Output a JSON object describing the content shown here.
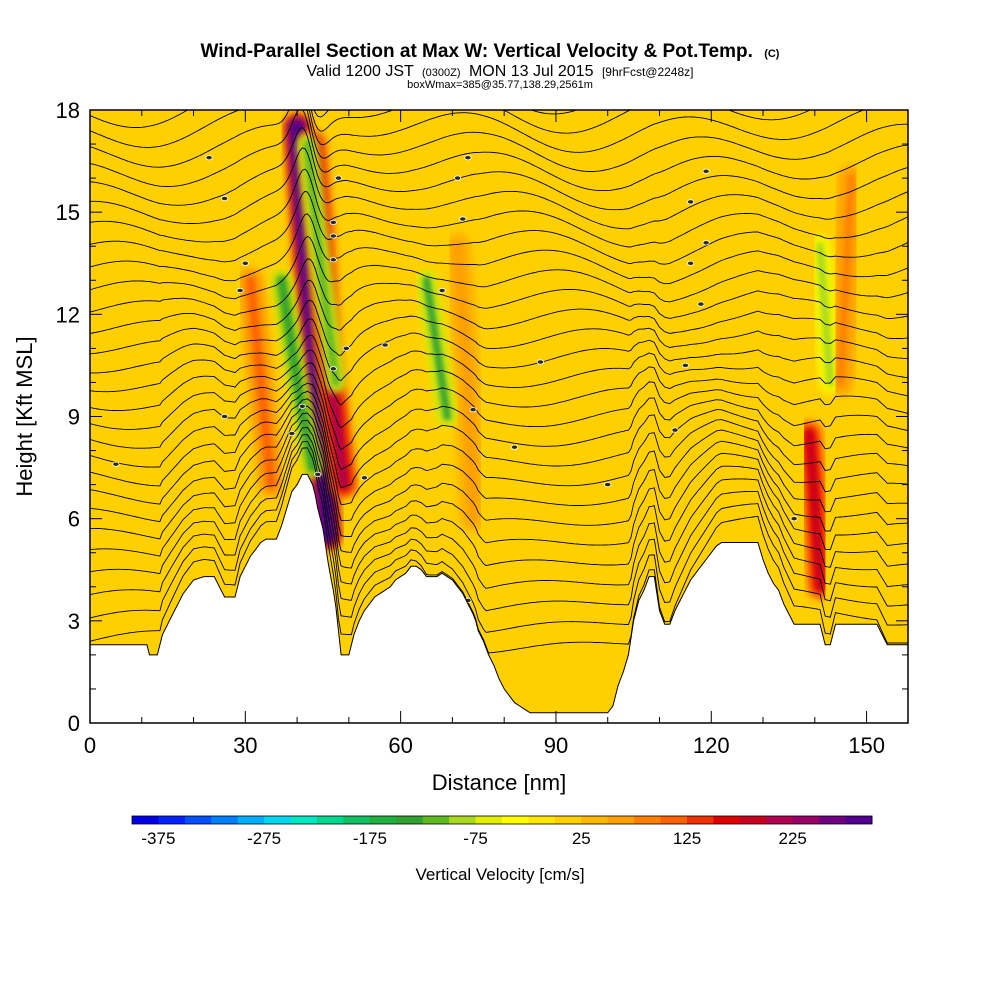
{
  "chart_data": {
    "type": "heatmap",
    "title": "Wind-Parallel Section at Max W: Vertical Velocity & Pot.Temp.",
    "copyright": "(C)",
    "subtitle": {
      "valid": "Valid 1200 JST",
      "utc": "(0300Z)",
      "date": "MON 13 Jul 2015",
      "fcst": "[9hrFcst@2248z]"
    },
    "box_info": "boxWmax=385@35.77,138.29,2561m",
    "xlabel": "Distance [nm]",
    "ylabel": "Height [Kft MSL]",
    "xlim": [
      0,
      158
    ],
    "ylim": [
      0,
      18
    ],
    "x_ticks": [
      0,
      30,
      60,
      90,
      120,
      150
    ],
    "x_tick_labels": [
      "0",
      "30",
      "60",
      "90",
      "120",
      "150"
    ],
    "y_ticks": [
      0,
      3,
      6,
      9,
      12,
      15,
      18
    ],
    "y_tick_labels": [
      "0",
      "3",
      "6",
      "9",
      "12",
      "15",
      "18"
    ],
    "terrain": [
      [
        0,
        2.3
      ],
      [
        5,
        2.3
      ],
      [
        11,
        2.3
      ],
      [
        11.5,
        2.0
      ],
      [
        13,
        2.0
      ],
      [
        13.5,
        2.3
      ],
      [
        14,
        2.6
      ],
      [
        15,
        2.9
      ],
      [
        16,
        3.2
      ],
      [
        17,
        3.5
      ],
      [
        18,
        3.8
      ],
      [
        19,
        4.0
      ],
      [
        20,
        4.2
      ],
      [
        22,
        4.3
      ],
      [
        24,
        4.3
      ],
      [
        25,
        4.0
      ],
      [
        26,
        3.7
      ],
      [
        28,
        3.7
      ],
      [
        28.5,
        4.0
      ],
      [
        29,
        4.3
      ],
      [
        30,
        4.6
      ],
      [
        31,
        4.9
      ],
      [
        32,
        5.1
      ],
      [
        33,
        5.3
      ],
      [
        34,
        5.4
      ],
      [
        36,
        5.4
      ],
      [
        37,
        5.8
      ],
      [
        38,
        6.3
      ],
      [
        39,
        6.8
      ],
      [
        40,
        7.0
      ],
      [
        41,
        7.3
      ],
      [
        42,
        7.3
      ],
      [
        43,
        7.0
      ],
      [
        43.5,
        6.7
      ],
      [
        44,
        6.3
      ],
      [
        44.5,
        6.0
      ],
      [
        45,
        5.7
      ],
      [
        45.5,
        5.2
      ],
      [
        46,
        4.7
      ],
      [
        46.5,
        4.3
      ],
      [
        47,
        3.9
      ],
      [
        47.5,
        3.4
      ],
      [
        48,
        2.7
      ],
      [
        48.5,
        2.0
      ],
      [
        50,
        2.0
      ],
      [
        50.5,
        2.3
      ],
      [
        51,
        2.6
      ],
      [
        52,
        3.0
      ],
      [
        53,
        3.3
      ],
      [
        54,
        3.5
      ],
      [
        55,
        3.7
      ],
      [
        56,
        3.8
      ],
      [
        57,
        3.9
      ],
      [
        58,
        4.0
      ],
      [
        59,
        4.2
      ],
      [
        60,
        4.3
      ],
      [
        61,
        4.4
      ],
      [
        62,
        4.6
      ],
      [
        63,
        4.6
      ],
      [
        64,
        4.5
      ],
      [
        65,
        4.3
      ],
      [
        67,
        4.3
      ],
      [
        68,
        4.4
      ],
      [
        69,
        4.3
      ],
      [
        70,
        4.2
      ],
      [
        71,
        4.0
      ],
      [
        72,
        3.8
      ],
      [
        73,
        3.5
      ],
      [
        74,
        3.2
      ],
      [
        74.5,
        3.0
      ],
      [
        75,
        2.7
      ],
      [
        76,
        2.4
      ],
      [
        77,
        2.0
      ],
      [
        78,
        1.7
      ],
      [
        79,
        1.3
      ],
      [
        80,
        1.0
      ],
      [
        81,
        0.8
      ],
      [
        82,
        0.6
      ],
      [
        83,
        0.5
      ],
      [
        84,
        0.4
      ],
      [
        85,
        0.3
      ],
      [
        100,
        0.3
      ],
      [
        101,
        0.5
      ],
      [
        101.5,
        0.8
      ],
      [
        102,
        1.1
      ],
      [
        103,
        1.5
      ],
      [
        104,
        2.0
      ],
      [
        104.5,
        2.5
      ],
      [
        105,
        3.0
      ],
      [
        106,
        3.6
      ],
      [
        107,
        3.9
      ],
      [
        108,
        4.3
      ],
      [
        109,
        4.3
      ],
      [
        109.5,
        3.8
      ],
      [
        110,
        3.3
      ],
      [
        111,
        2.9
      ],
      [
        112,
        2.9
      ],
      [
        113,
        3.3
      ],
      [
        114,
        3.6
      ],
      [
        115,
        3.9
      ],
      [
        116,
        4.2
      ],
      [
        117,
        4.4
      ],
      [
        118,
        4.6
      ],
      [
        119,
        4.8
      ],
      [
        120,
        5.0
      ],
      [
        121,
        5.2
      ],
      [
        122,
        5.3
      ],
      [
        129,
        5.3
      ],
      [
        130,
        4.8
      ],
      [
        131,
        4.4
      ],
      [
        132,
        4.1
      ],
      [
        133,
        3.9
      ],
      [
        134,
        3.5
      ],
      [
        135,
        3.2
      ],
      [
        136,
        2.9
      ],
      [
        141,
        2.9
      ],
      [
        141.5,
        2.6
      ],
      [
        142,
        2.3
      ],
      [
        143,
        2.3
      ],
      [
        143.5,
        2.6
      ],
      [
        144,
        2.9
      ],
      [
        152,
        2.9
      ],
      [
        153,
        2.6
      ],
      [
        154,
        2.3
      ],
      [
        158,
        2.3
      ]
    ],
    "updrafts": [
      {
        "x": [
          46,
          44,
          42,
          40
        ],
        "y": [
          5.5,
          9.5,
          13.5,
          17.5
        ],
        "peak": 385
      },
      {
        "x": [
          49,
          46,
          44.5,
          43
        ],
        "y": [
          7,
          11,
          14.5,
          17
        ],
        "peak": 200
      },
      {
        "x": [
          35,
          33,
          31
        ],
        "y": [
          7,
          10,
          13
        ],
        "peak": 90
      },
      {
        "x": [
          141,
          140,
          139
        ],
        "y": [
          4,
          6.5,
          8.5
        ],
        "peak": 170
      },
      {
        "x": [
          145,
          146,
          147
        ],
        "y": [
          10,
          13,
          16
        ],
        "peak": 70
      },
      {
        "x": [
          74,
          73,
          71
        ],
        "y": [
          6,
          10,
          14
        ],
        "peak": 60
      }
    ],
    "downdrafts": [
      {
        "x": [
          43,
          40,
          37
        ],
        "y": [
          7.5,
          10,
          13
        ],
        "peak": -130
      },
      {
        "x": [
          47.5,
          44.5,
          42
        ],
        "y": [
          10,
          13.5,
          17
        ],
        "peak": -110
      },
      {
        "x": [
          69,
          67,
          65
        ],
        "y": [
          9,
          11,
          13
        ],
        "peak": -120
      },
      {
        "x": [
          143,
          142,
          141
        ],
        "y": [
          10,
          12,
          14
        ],
        "peak": -90
      },
      {
        "x": [
          60,
          60
        ],
        "y": [
          5,
          6.5
        ],
        "peak": -70
      },
      {
        "x": [
          68,
          68
        ],
        "y": [
          8.5,
          9.5
        ],
        "peak": -60
      }
    ],
    "theta_contours": {
      "count": 30,
      "base_height": 2.4,
      "top_height": 18.0
    },
    "theta_labels": [
      [
        5,
        7.6
      ],
      [
        26,
        9.0
      ],
      [
        39,
        8.5
      ],
      [
        41,
        9.3
      ],
      [
        29,
        12.7
      ],
      [
        30,
        13.5
      ],
      [
        26,
        15.4
      ],
      [
        23,
        16.6
      ],
      [
        40,
        6.9
      ],
      [
        44,
        7.3
      ],
      [
        47,
        10.4
      ],
      [
        49.5,
        11.0
      ],
      [
        47,
        13.6
      ],
      [
        47,
        14.3
      ],
      [
        47,
        14.7
      ],
      [
        48,
        16.0
      ],
      [
        53,
        7.2
      ],
      [
        57,
        11.1
      ],
      [
        68,
        12.7
      ],
      [
        72,
        14.8
      ],
      [
        71,
        16.0
      ],
      [
        73,
        16.6
      ],
      [
        74,
        9.2
      ],
      [
        82,
        8.1
      ],
      [
        87,
        10.6
      ],
      [
        100,
        7.0
      ],
      [
        113,
        8.6
      ],
      [
        115,
        10.5
      ],
      [
        118,
        12.3
      ],
      [
        116,
        13.5
      ],
      [
        119,
        14.1
      ],
      [
        116,
        15.3
      ],
      [
        119,
        16.2
      ],
      [
        136,
        6.0
      ],
      [
        73,
        3.6
      ]
    ],
    "colorbar": {
      "label": "Vertical Velocity [cm/s]",
      "min": -400,
      "max": 300,
      "step": 25,
      "ticks": [
        -375,
        -275,
        -175,
        -75,
        25,
        125,
        225
      ],
      "tick_labels": [
        "-375",
        "-275",
        "-175",
        "-75",
        "25",
        "125",
        "225"
      ],
      "colors": [
        "#0000e6",
        "#0020ff",
        "#0050ff",
        "#0080ff",
        "#00b0ff",
        "#00d8f0",
        "#00e8c0",
        "#00d890",
        "#10c060",
        "#20b040",
        "#30a030",
        "#60b820",
        "#a8d820",
        "#e0f000",
        "#ffff00",
        "#ffe800",
        "#ffd000",
        "#ffb800",
        "#ffa000",
        "#ff8000",
        "#ff6000",
        "#f03000",
        "#e00000",
        "#c80020",
        "#b00050",
        "#980068",
        "#700080",
        "#500090"
      ]
    }
  }
}
